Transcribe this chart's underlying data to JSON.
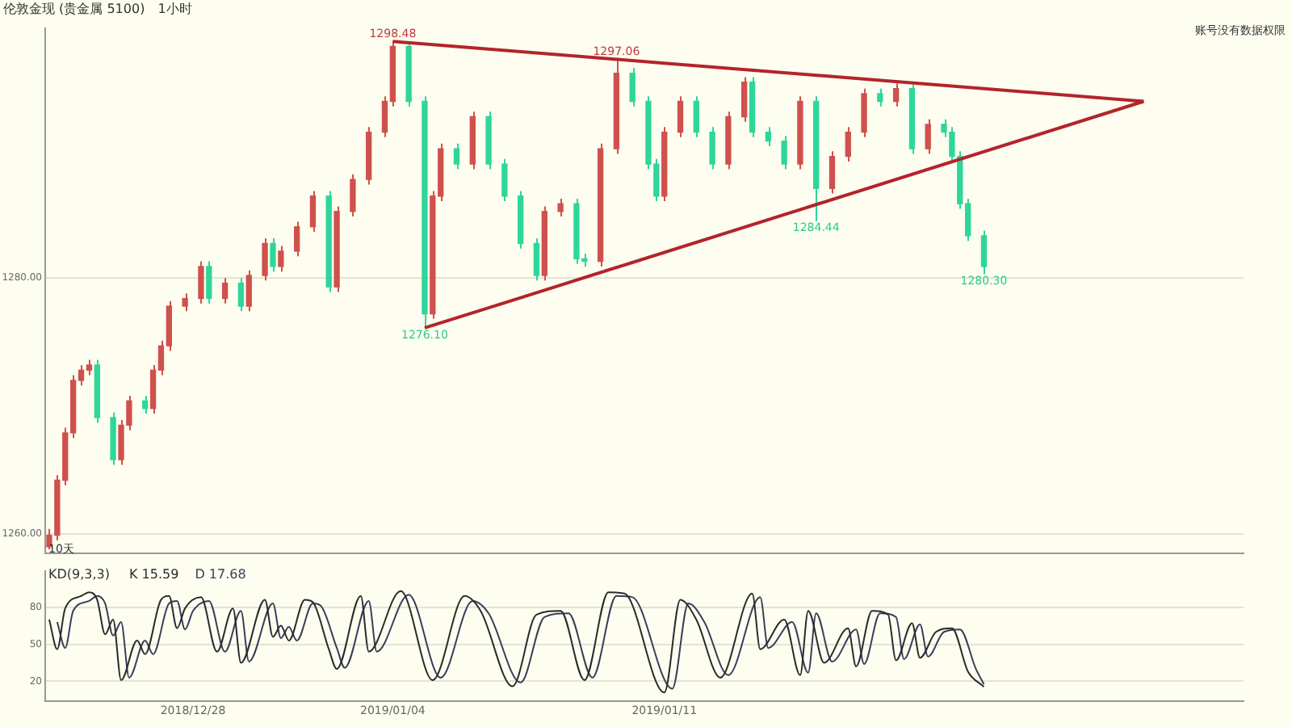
{
  "chart_data": [
    {
      "type": "candlestick",
      "title": "伦敦金现 (贵金属 5100)",
      "subtitle": "1小时",
      "categories": [
        null,
        null,
        null,
        null,
        null,
        null,
        null,
        null,
        null,
        null,
        null,
        null,
        null,
        null,
        null,
        null,
        null,
        null,
        "2018/12/28",
        null,
        null,
        null,
        null,
        null,
        null,
        null,
        null,
        null,
        null,
        null,
        null,
        null,
        null,
        null,
        null,
        null,
        null,
        null,
        null,
        null,
        null,
        null,
        null,
        "2019/01/04",
        null,
        null,
        null,
        null,
        null,
        null,
        null,
        null,
        null,
        null,
        null,
        null,
        null,
        null,
        null,
        null,
        null,
        null,
        null,
        null,
        null,
        null,
        null,
        null,
        null,
        null,
        null,
        null,
        null,
        null,
        null,
        null,
        null,
        "2019/01/11",
        null,
        null,
        null,
        null,
        null,
        null,
        null,
        null,
        null,
        null,
        null,
        null,
        null,
        null,
        null,
        null,
        null,
        null,
        null,
        null,
        null,
        null,
        null,
        null,
        null,
        null,
        null,
        null,
        null,
        null,
        null,
        null,
        null,
        null,
        null,
        null,
        null,
        null,
        null,
        null,
        null,
        null,
        null,
        null,
        null,
        null,
        null,
        null,
        null,
        null,
        null,
        null,
        null,
        null,
        null,
        null,
        null,
        null,
        null,
        null,
        null,
        null,
        null,
        null,
        null,
        null,
        null,
        null,
        null,
        null,
        null,
        null
      ],
      "ohlc": [
        [
          1259.0,
          1260.4,
          1258.8,
          1259.9
        ],
        [
          1259.9,
          1264.6,
          1259.5,
          1264.2
        ],
        [
          1264.2,
          1268.3,
          1263.8,
          1267.9
        ],
        [
          1267.9,
          1272.4,
          1267.5,
          1272.0
        ],
        [
          1272.0,
          1273.2,
          1271.6,
          1272.8
        ],
        [
          1272.8,
          1273.6,
          1272.4,
          1273.2
        ],
        [
          1273.2,
          1273.6,
          1268.7,
          1269.1
        ],
        null,
        [
          1269.1,
          1269.5,
          1265.4,
          1265.8
        ],
        [
          1265.8,
          1268.9,
          1265.4,
          1268.5
        ],
        [
          1268.5,
          1270.8,
          1268.1,
          1270.4
        ],
        null,
        [
          1270.4,
          1270.8,
          1269.4,
          1269.8
        ],
        [
          1269.8,
          1273.2,
          1269.4,
          1272.8
        ],
        [
          1272.8,
          1275.1,
          1272.4,
          1274.7
        ],
        [
          1274.7,
          1278.2,
          1274.3,
          1277.8
        ],
        null,
        [
          1277.8,
          1278.8,
          1277.4,
          1278.4
        ],
        null,
        [
          1278.4,
          1281.3,
          1278.0,
          1280.9
        ],
        [
          1280.9,
          1281.3,
          1278.0,
          1278.4
        ],
        null,
        [
          1278.4,
          1280.0,
          1278.0,
          1279.6
        ],
        null,
        [
          1279.6,
          1280.0,
          1277.4,
          1277.8
        ],
        [
          1277.8,
          1280.6,
          1277.4,
          1280.2
        ],
        null,
        [
          1280.2,
          1283.1,
          1279.8,
          1282.7
        ],
        [
          1282.7,
          1283.1,
          1280.5,
          1280.9
        ],
        [
          1280.9,
          1282.5,
          1280.5,
          1282.1
        ],
        null,
        [
          1282.1,
          1284.4,
          1281.7,
          1284.0
        ],
        null,
        [
          1284.0,
          1286.8,
          1283.6,
          1286.4
        ],
        null,
        [
          1286.4,
          1286.8,
          1278.9,
          1279.3
        ],
        [
          1279.3,
          1285.6,
          1278.9,
          1285.2
        ],
        null,
        [
          1285.2,
          1288.1,
          1284.8,
          1287.7
        ],
        null,
        [
          1287.7,
          1291.8,
          1287.3,
          1291.4
        ],
        null,
        [
          1291.4,
          1294.2,
          1291.0,
          1293.8
        ],
        [
          1293.8,
          1298.48,
          1293.4,
          1298.1
        ],
        null,
        [
          1298.1,
          1298.3,
          1293.4,
          1293.8
        ],
        null,
        [
          1293.8,
          1294.2,
          1276.1,
          1277.2
        ],
        [
          1277.2,
          1286.8,
          1276.8,
          1286.4
        ],
        [
          1286.4,
          1290.5,
          1286.0,
          1290.1
        ],
        null,
        [
          1290.1,
          1290.5,
          1288.5,
          1288.9
        ],
        null,
        [
          1288.9,
          1293.0,
          1288.5,
          1292.6
        ],
        null,
        [
          1292.6,
          1293.0,
          1288.5,
          1288.9
        ],
        null,
        [
          1288.9,
          1289.3,
          1286.0,
          1286.4
        ],
        null,
        [
          1286.4,
          1286.8,
          1282.3,
          1282.7
        ],
        null,
        [
          1282.7,
          1283.1,
          1279.8,
          1280.2
        ],
        [
          1280.2,
          1285.6,
          1279.8,
          1285.2
        ],
        null,
        [
          1285.2,
          1286.2,
          1284.8,
          1285.8
        ],
        null,
        [
          1285.8,
          1286.2,
          1281.1,
          1281.5
        ],
        [
          1281.5,
          1281.9,
          1280.9,
          1281.3
        ],
        null,
        [
          1281.3,
          1290.5,
          1280.9,
          1290.1
        ],
        null,
        [
          1290.1,
          1297.06,
          1289.7,
          1296.0
        ],
        null,
        [
          1296.0,
          1296.4,
          1293.4,
          1293.8
        ],
        null,
        [
          1293.8,
          1294.2,
          1288.5,
          1288.9
        ],
        [
          1288.9,
          1289.3,
          1286.0,
          1286.4
        ],
        [
          1286.4,
          1291.8,
          1286.0,
          1291.4
        ],
        null,
        [
          1291.4,
          1294.2,
          1291.0,
          1293.8
        ],
        null,
        [
          1293.8,
          1294.2,
          1291.0,
          1291.4
        ],
        null,
        [
          1291.4,
          1291.8,
          1288.5,
          1288.9
        ],
        null,
        [
          1288.9,
          1293.0,
          1288.5,
          1292.6
        ],
        null,
        [
          1292.6,
          1295.7,
          1292.2,
          1295.3
        ],
        [
          1295.3,
          1295.7,
          1291.0,
          1291.4
        ],
        null,
        [
          1291.4,
          1291.8,
          1290.3,
          1290.7
        ],
        null,
        [
          1290.7,
          1291.1,
          1288.5,
          1288.9
        ],
        null,
        [
          1288.9,
          1294.2,
          1288.5,
          1293.8
        ],
        null,
        [
          1293.8,
          1294.2,
          1284.44,
          1287.0
        ],
        null,
        [
          1287.0,
          1289.9,
          1286.6,
          1289.5
        ],
        null,
        [
          1289.5,
          1291.8,
          1289.1,
          1291.4
        ],
        null,
        [
          1291.4,
          1294.8,
          1291.0,
          1294.4
        ],
        null,
        [
          1294.4,
          1294.8,
          1293.4,
          1293.8
        ],
        null,
        [
          1293.8,
          1295.2,
          1293.4,
          1294.8
        ],
        null,
        [
          1294.8,
          1295.2,
          1289.7,
          1290.1
        ],
        null,
        [
          1290.1,
          1292.4,
          1289.7,
          1292.0
        ],
        null,
        [
          1292.0,
          1292.4,
          1291.0,
          1291.4
        ],
        [
          1291.4,
          1291.8,
          1289.1,
          1289.5
        ],
        [
          1289.5,
          1289.9,
          1285.4,
          1285.8
        ],
        [
          1285.8,
          1286.2,
          1282.9,
          1283.3
        ],
        null,
        [
          1283.3,
          1283.7,
          1280.3,
          1280.9
        ],
        null,
        null,
        null,
        null,
        null,
        null,
        null,
        null,
        null,
        null,
        null,
        null,
        null,
        null,
        null,
        null,
        null,
        null,
        null,
        null,
        null,
        null,
        null,
        null,
        null,
        null,
        null,
        null,
        null,
        null,
        null,
        null
      ],
      "colors": [
        "#d0504d",
        "#d0504d",
        "#d0504d",
        "#d0504d",
        "#d0504d",
        "#d0504d",
        "#2ed69a",
        null,
        "#2ed69a",
        "#d0504d",
        "#d0504d",
        null,
        "#2ed69a",
        "#d0504d",
        "#d0504d",
        "#d0504d",
        null,
        "#d0504d",
        null,
        "#d0504d",
        "#2ed69a",
        null,
        "#d0504d",
        null,
        "#2ed69a",
        "#d0504d",
        null,
        "#d0504d",
        "#2ed69a",
        "#d0504d",
        null,
        "#d0504d",
        null,
        "#d0504d",
        null,
        "#2ed69a",
        "#d0504d",
        null,
        "#d0504d",
        null,
        "#d0504d",
        null,
        "#d0504d",
        "#d0504d",
        null,
        "#2ed69a",
        null,
        "#2ed69a",
        "#d0504d",
        "#d0504d",
        null,
        "#2ed69a",
        null,
        "#d0504d",
        null,
        "#2ed69a",
        null,
        "#2ed69a",
        null,
        "#2ed69a",
        null,
        "#2ed69a",
        "#d0504d",
        null,
        "#d0504d",
        null,
        "#2ed69a",
        "#2ed69a",
        null,
        "#d0504d",
        null,
        "#d0504d",
        null,
        "#2ed69a",
        null,
        "#2ed69a",
        "#2ed69a",
        "#d0504d",
        null,
        "#d0504d",
        null,
        "#2ed69a",
        null,
        "#2ed69a",
        null,
        "#d0504d",
        null,
        "#d0504d",
        "#2ed69a",
        null,
        "#2ed69a",
        null,
        "#2ed69a",
        null,
        "#d0504d",
        null,
        "#2ed69a",
        null,
        "#d0504d",
        null,
        "#d0504d",
        null,
        "#d0504d",
        null,
        "#2ed69a",
        null,
        "#d0504d",
        null,
        "#2ed69a",
        null,
        "#d0504d",
        null,
        "#2ed69a",
        "#2ed69a",
        "#2ed69a",
        "#2ed69a",
        null,
        "#2ed69a",
        null,
        null,
        null,
        null,
        null,
        null,
        null,
        null,
        null,
        null,
        null,
        null,
        null,
        null,
        null,
        null,
        null,
        null,
        null,
        null,
        null,
        null,
        null,
        null,
        null,
        null,
        null,
        null,
        null,
        null,
        null,
        null
      ],
      "series": [
        {
          "type": "line",
          "color": "#b3242a",
          "values": [
            null,
            null,
            null,
            null,
            null,
            null,
            null,
            null,
            null,
            null,
            null,
            null,
            null,
            null,
            null,
            null,
            null,
            null,
            null,
            null,
            null,
            null,
            null,
            null,
            null,
            null,
            null,
            null,
            null,
            null,
            null,
            null,
            null,
            null,
            null,
            null,
            null,
            null,
            null,
            null,
            null,
            null,
            null,
            1298.48,
            null,
            null,
            null,
            null,
            null,
            null,
            null,
            null,
            null,
            null,
            null,
            null,
            null,
            null,
            null,
            null,
            null,
            null,
            null,
            null,
            null,
            null,
            null,
            null,
            null,
            null,
            null,
            null,
            null,
            null,
            null,
            null,
            null,
            null,
            null,
            null,
            null,
            null,
            null,
            null,
            null,
            null,
            null,
            null,
            null,
            null,
            null,
            null,
            null,
            null,
            null,
            null,
            null,
            null,
            null,
            null,
            null,
            null,
            null,
            null,
            null,
            null,
            null,
            null,
            null,
            null,
            null,
            null,
            null,
            null,
            null,
            null,
            null,
            null,
            null,
            null,
            null,
            null,
            null,
            null,
            null,
            null,
            null,
            null,
            null,
            null,
            null,
            null,
            null,
            null,
            null,
            null,
            null,
            1293.8,
            null,
            null,
            null,
            null,
            null,
            null,
            null,
            null,
            null,
            null,
            null,
            null
          ]
        },
        {
          "type": "line",
          "color": "#b3242a",
          "values": [
            null,
            null,
            null,
            null,
            null,
            null,
            null,
            null,
            null,
            null,
            null,
            null,
            null,
            null,
            null,
            null,
            null,
            null,
            null,
            null,
            null,
            null,
            null,
            null,
            null,
            null,
            null,
            null,
            null,
            null,
            null,
            null,
            null,
            null,
            null,
            null,
            null,
            null,
            null,
            null,
            null,
            null,
            null,
            null,
            null,
            null,
            null,
            1276.1,
            null,
            null,
            null,
            null,
            null,
            null,
            null,
            null,
            null,
            null,
            null,
            null,
            null,
            null,
            null,
            null,
            null,
            null,
            null,
            null,
            null,
            null,
            null,
            null,
            null,
            null,
            null,
            null,
            null,
            null,
            null,
            null,
            null,
            null,
            null,
            null,
            null,
            null,
            null,
            null,
            null,
            null,
            null,
            null,
            null,
            null,
            null,
            null,
            null,
            null,
            null,
            null,
            null,
            null,
            null,
            null,
            null,
            null,
            null,
            null,
            null,
            null,
            null,
            null,
            null,
            null,
            null,
            null,
            null,
            null,
            null,
            null,
            null,
            null,
            null,
            null,
            null,
            null,
            null,
            null,
            null,
            null,
            null,
            null,
            null,
            null,
            null,
            null,
            null,
            1293.8,
            null,
            null,
            null,
            null,
            null,
            null,
            null,
            null,
            null,
            null,
            null,
            null
          ]
        }
      ],
      "ylim": [
        1258.5,
        1299.5
      ],
      "yticks": [
        {
          "value": 1260,
          "label": "1260.00"
        },
        {
          "value": 1280,
          "label": "1280.00"
        }
      ],
      "tick_labels": "y",
      "grid": "y",
      "annotations": [
        "账号没有数据权限",
        "10天",
        {
          "text": "1298.48",
          "y": 1298.48
        },
        {
          "text": "1297.06",
          "y": 1297.06
        },
        {
          "text": "1276.10",
          "y": 1276.1
        },
        {
          "text": "1284.44",
          "y": 1284.44
        },
        {
          "text": "1280.30",
          "y": 1280.3
        }
      ]
    },
    {
      "type": "line",
      "title": "KD(9,3,3)",
      "legend": "top left",
      "marker": "none",
      "grid": "y",
      "categories": [
        null,
        null,
        null,
        null,
        null,
        null,
        null,
        null,
        null,
        null,
        null,
        null,
        null,
        null,
        null,
        null,
        null,
        null,
        "2018/12/28",
        null,
        null,
        null,
        null,
        null,
        null,
        null,
        null,
        null,
        null,
        null,
        null,
        null,
        null,
        null,
        null,
        null,
        null,
        null,
        null,
        null,
        null,
        null,
        null,
        "2019/01/04",
        null,
        null,
        null,
        null,
        null,
        null,
        null,
        null,
        null,
        null,
        null,
        null,
        null,
        null,
        null,
        null,
        null,
        null,
        null,
        null,
        null,
        null,
        null,
        null,
        null,
        null,
        null,
        null,
        null,
        null,
        null,
        null,
        null,
        "2019/01/11",
        null,
        null,
        null,
        null,
        null,
        null,
        null,
        null,
        null,
        null,
        null,
        null,
        null,
        null,
        null,
        null,
        null,
        null,
        null,
        null,
        null,
        null,
        null,
        null,
        null,
        null,
        null,
        null,
        null,
        null,
        null,
        null,
        null,
        null,
        null,
        null,
        null,
        null,
        null,
        null,
        null,
        null,
        null,
        null,
        null,
        null,
        null,
        null,
        null,
        null,
        null,
        null,
        null,
        null,
        null,
        null,
        null,
        null,
        null,
        null,
        null,
        null,
        null,
        null,
        null,
        null,
        null,
        null,
        null,
        null,
        null,
        null
      ],
      "series": [
        {
          "name": "K 15.59",
          "color": "#2a2a2a",
          "values": [
            70,
            46,
            79,
            null,
            89,
            92,
            86,
            58,
            70,
            21,
            null,
            53,
            42,
            null,
            86,
            89,
            63,
            79,
            null,
            88,
            null,
            44,
            null,
            79,
            35,
            null,
            null,
            86,
            56,
            65,
            53,
            null,
            86,
            84,
            null,
            46,
            30,
            null,
            null,
            89,
            44,
            null,
            null,
            null,
            93,
            null,
            null,
            null,
            21,
            null,
            null,
            null,
            89,
            null,
            77,
            null,
            null,
            null,
            16,
            null,
            null,
            74,
            null,
            null,
            77,
            null,
            null,
            21,
            null,
            null,
            92,
            null,
            91,
            null,
            null,
            null,
            null,
            11,
            null,
            86,
            null,
            70,
            null,
            null,
            23,
            null,
            null,
            null,
            91,
            46,
            null,
            null,
            70,
            null,
            25,
            77,
            null,
            35,
            null,
            null,
            63,
            32,
            null,
            77,
            null,
            74,
            37,
            null,
            67,
            39,
            null,
            60,
            null,
            63,
            null,
            28,
            null,
            15.59,
            null,
            null,
            null,
            null,
            null,
            null,
            null,
            null,
            null,
            null,
            null,
            null,
            null,
            null,
            null,
            null,
            null,
            null,
            null,
            null,
            null,
            null,
            null,
            null,
            null,
            null,
            null,
            null,
            null,
            null,
            null,
            null
          ]
        },
        {
          "name": "D 17.68",
          "color": "#3c3c5c",
          "values": [
            null,
            68,
            47,
            77,
            null,
            85,
            89,
            83,
            57,
            68,
            23,
            null,
            53,
            42,
            null,
            83,
            85,
            62,
            77,
            null,
            85,
            null,
            44,
            null,
            77,
            36,
            null,
            null,
            83,
            55,
            64,
            53,
            null,
            83,
            81,
            null,
            47,
            31,
            null,
            null,
            85,
            44,
            null,
            null,
            null,
            90,
            null,
            null,
            null,
            23,
            null,
            null,
            null,
            85,
            null,
            75,
            null,
            null,
            null,
            19,
            null,
            null,
            72,
            null,
            null,
            75,
            null,
            null,
            23,
            null,
            null,
            89,
            null,
            88,
            null,
            null,
            null,
            null,
            14,
            null,
            83,
            null,
            68,
            null,
            null,
            25,
            null,
            null,
            null,
            88,
            47,
            null,
            null,
            68,
            null,
            27,
            75,
            null,
            36,
            null,
            null,
            62,
            34,
            null,
            75,
            null,
            72,
            38,
            null,
            66,
            40,
            null,
            60,
            null,
            62,
            null,
            30,
            17.68,
            null,
            null,
            null,
            null,
            null,
            null,
            null,
            null,
            null,
            null,
            null,
            null,
            null,
            null,
            null,
            null,
            null,
            null,
            null,
            null,
            null,
            null,
            null,
            null,
            null,
            null,
            null,
            null,
            null,
            null,
            null,
            null
          ]
        }
      ],
      "ylim": [
        4,
        109
      ],
      "yticks": [
        20,
        50,
        80
      ]
    }
  ]
}
